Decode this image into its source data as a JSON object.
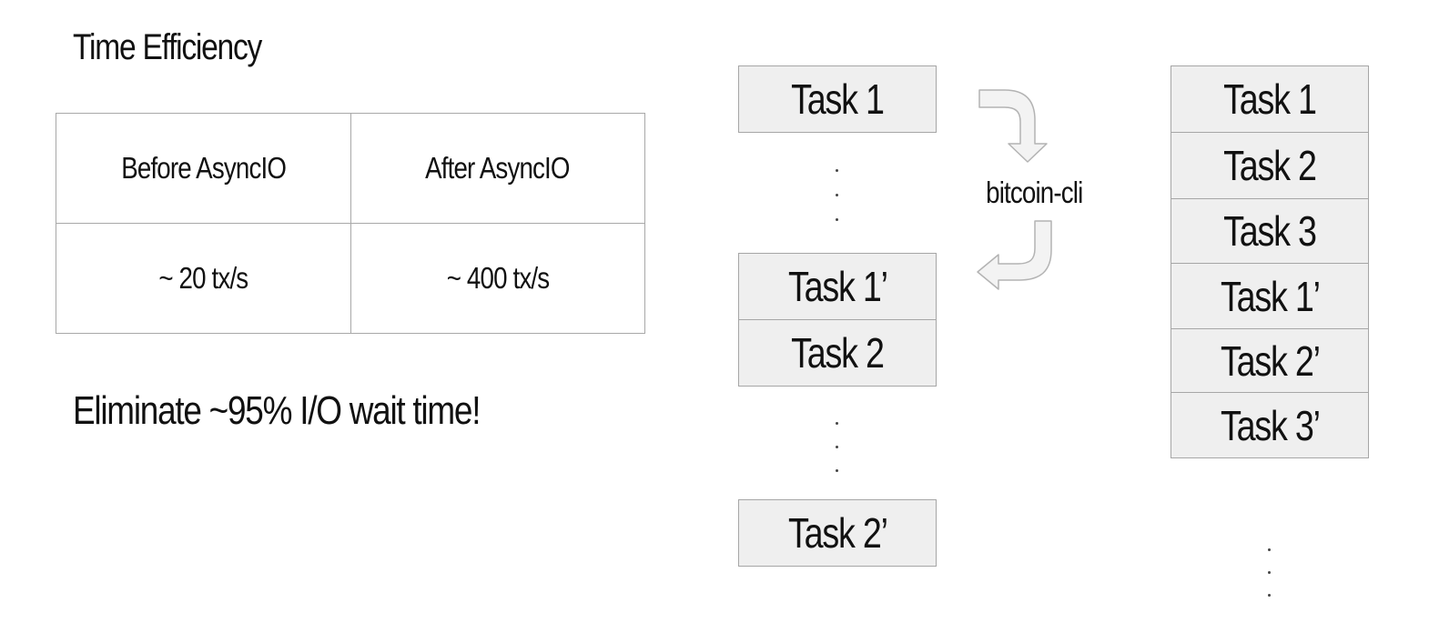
{
  "title": "Time Efficiency",
  "comparison_table": {
    "headers": [
      "Before AsyncIO",
      "After AsyncIO"
    ],
    "values": [
      "~ 20 tx/s",
      "~ 400 tx/s"
    ]
  },
  "tagline": "Eliminate ~95% I/O wait time!",
  "sequential_tasks": [
    "Task 1",
    "Task 1’",
    "Task 2",
    "Task 2’"
  ],
  "cli_label": "bitcoin-cli",
  "async_tasks": [
    "Task 1",
    "Task 2",
    "Task 3",
    "Task 1’",
    "Task 2’",
    "Task 3’"
  ],
  "icons": {
    "request_arrow": "curved-arrow-down-icon",
    "response_arrow": "curved-arrow-left-icon"
  },
  "colors": {
    "box_fill": "#efefef",
    "box_border": "#a6a6a6",
    "arrow_fill": "#f3f3f3",
    "arrow_stroke": "#b3b3b3"
  }
}
